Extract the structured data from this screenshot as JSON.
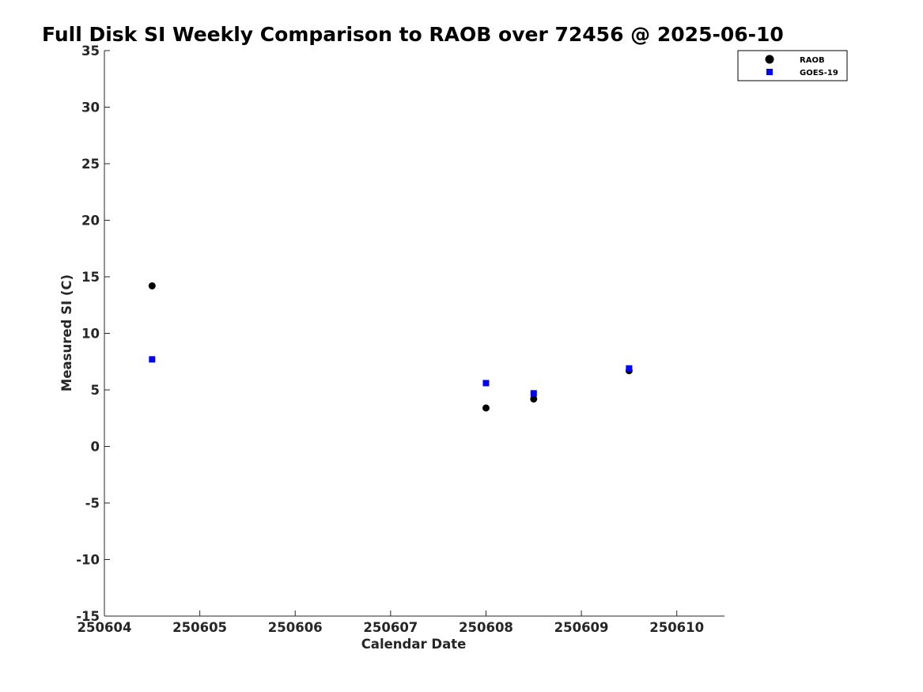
{
  "chart_data": {
    "type": "scatter",
    "title": "Full Disk SI Weekly Comparison to RAOB over 72456 @ 2025-06-10",
    "xlabel": "Calendar Date",
    "ylabel": "Measured SI (C)",
    "xlim": [
      250604,
      250610.5
    ],
    "ylim": [
      -15,
      35
    ],
    "xticks": [
      250604,
      250605,
      250606,
      250607,
      250608,
      250609,
      250610
    ],
    "xtick_labels": [
      "250604",
      "250605",
      "250606",
      "250607",
      "250608",
      "250609",
      "250610"
    ],
    "yticks": [
      35,
      30,
      25,
      20,
      15,
      10,
      5,
      0,
      -5,
      -10,
      -15
    ],
    "ytick_labels": [
      "35",
      "30",
      "25",
      "20",
      "15",
      "10",
      "5",
      "0",
      "-5",
      "-10",
      "-15"
    ],
    "grid": false,
    "legend_position": "top-right",
    "series": [
      {
        "name": "RAOB",
        "marker": "circle",
        "color": "#000000",
        "x": [
          250604.5,
          250608.0,
          250608.5,
          250609.5
        ],
        "y": [
          14.2,
          3.4,
          4.2,
          6.7
        ]
      },
      {
        "name": "GOES-19",
        "marker": "square",
        "color": "#0000ff",
        "x": [
          250604.5,
          250608.0,
          250608.5,
          250609.5
        ],
        "y": [
          7.7,
          5.6,
          4.7,
          6.9
        ]
      }
    ]
  }
}
